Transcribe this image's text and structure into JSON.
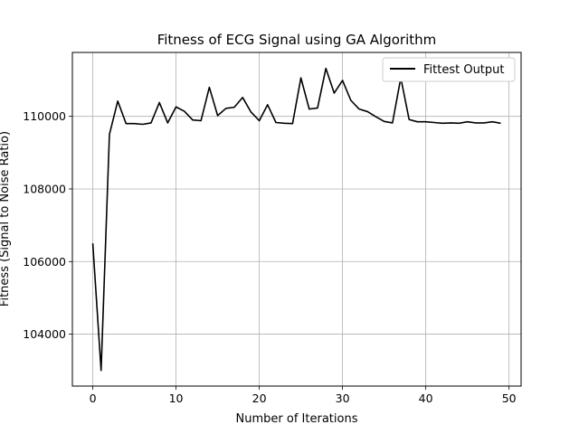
{
  "chart_data": {
    "type": "line",
    "title": "Fitness of ECG Signal using GA Algorithm",
    "xlabel": "Number of Iterations",
    "ylabel": "Fitness (Signal to Noise Ratio)",
    "xlim": [
      -2.45,
      51.45
    ],
    "ylim": [
      102570,
      111760
    ],
    "xticks": [
      0,
      10,
      20,
      30,
      40,
      50
    ],
    "yticks": [
      104000,
      106000,
      108000,
      110000
    ],
    "grid": true,
    "legend_position": "upper right",
    "series": [
      {
        "name": "Fittest Output",
        "color": "#000000",
        "x": [
          0,
          1,
          2,
          3,
          4,
          5,
          6,
          7,
          8,
          9,
          10,
          11,
          12,
          13,
          14,
          15,
          16,
          17,
          18,
          19,
          20,
          21,
          22,
          23,
          24,
          25,
          26,
          27,
          28,
          29,
          30,
          31,
          32,
          33,
          34,
          35,
          36,
          37,
          38,
          39,
          40,
          41,
          42,
          43,
          44,
          45,
          46,
          47,
          48,
          49
        ],
        "y": [
          106500,
          103000,
          109500,
          110420,
          109800,
          109800,
          109780,
          109820,
          110380,
          109820,
          110260,
          110140,
          109900,
          109880,
          110800,
          110020,
          110220,
          110250,
          110520,
          110120,
          109880,
          110320,
          109830,
          109810,
          109800,
          111060,
          110200,
          110230,
          111320,
          110640,
          110990,
          110440,
          110200,
          110130,
          109990,
          109860,
          109820,
          111060,
          109910,
          109850,
          109850,
          109830,
          109810,
          109820,
          109810,
          109850,
          109820,
          109820,
          109850,
          109810
        ]
      }
    ]
  }
}
